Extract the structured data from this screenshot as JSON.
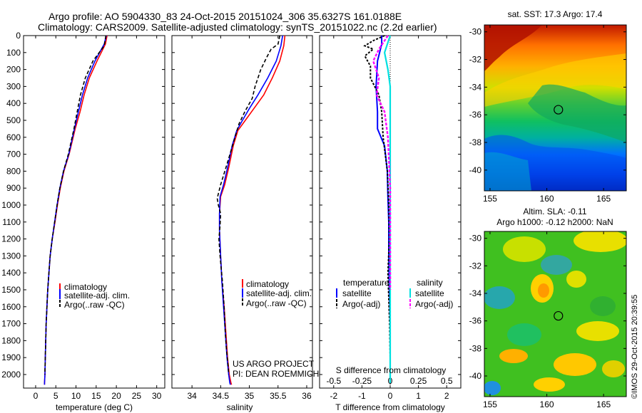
{
  "header": {
    "line1": "Argo profile: AO 5904330_83 24-Oct-2015 20151024_306 35.6327S 161.0188E",
    "line2": "Climatology: CARS2009. Satellite-adjusted climatology: synTS_20151022.nc (2.2d earlier)"
  },
  "colors": {
    "climatology": "#ff0000",
    "satellite": "#0000ff",
    "argo": "#000000",
    "salinity_satellite": "#00e0e0",
    "salinity_argo": "#ff00ff"
  },
  "credits": {
    "project": "US ARGO PROJECT",
    "pi": "PI: DEAN ROEMMICH",
    "imos": "©IMOS 29-Oct-2015 20:39:55"
  },
  "chart_data": [
    {
      "type": "line",
      "xlabel": "temperature (deg C)",
      "ylabel": "",
      "xlim": [
        -3,
        32
      ],
      "ylim": [
        2080,
        0
      ],
      "xticks": [
        0,
        5,
        10,
        15,
        20,
        25,
        30
      ],
      "yticks": [
        0,
        100,
        200,
        300,
        400,
        500,
        600,
        700,
        800,
        900,
        1000,
        1100,
        1200,
        1300,
        1400,
        1500,
        1600,
        1700,
        1800,
        1900,
        2000
      ],
      "legend": [
        "climatology",
        "satellite-adj. clim.",
        "Argo(..raw -QC)"
      ],
      "series": [
        {
          "name": "climatology",
          "x": [
            17.7,
            17.3,
            15.2,
            13.3,
            12.0,
            11.0,
            9.8,
            8.3,
            7.0,
            6.1,
            5.4,
            4.8,
            4.1,
            3.6,
            3.3,
            3.0,
            2.8,
            2.6,
            2.5,
            2.4,
            2.3,
            2.2,
            2.2
          ],
          "y": [
            0,
            50,
            150,
            250,
            350,
            450,
            550,
            700,
            800,
            900,
            1000,
            1100,
            1200,
            1300,
            1400,
            1500,
            1600,
            1700,
            1800,
            1900,
            2000,
            2050,
            2060
          ]
        },
        {
          "name": "satellite-adj. clim.",
          "x": [
            17.5,
            17.0,
            14.7,
            12.9,
            11.6,
            10.6,
            9.6,
            8.2,
            6.9,
            6.0,
            5.3,
            4.7,
            4.1,
            3.6,
            3.3,
            3.0,
            2.8,
            2.6,
            2.5,
            2.4,
            2.3,
            2.2,
            2.2
          ],
          "y": [
            0,
            50,
            150,
            250,
            350,
            450,
            550,
            700,
            800,
            900,
            1000,
            1100,
            1200,
            1300,
            1400,
            1500,
            1600,
            1700,
            1800,
            1900,
            2000,
            2050,
            2060
          ]
        },
        {
          "name": "Argo(..raw -QC)",
          "x": [
            17.4,
            17.0,
            14.2,
            12.3,
            11.1,
            10.3,
            9.5,
            8.1,
            6.9,
            6.0,
            5.3,
            4.7,
            4.1,
            3.6,
            3.3,
            3.0,
            2.8,
            2.6,
            2.5,
            2.4,
            2.3,
            2.3
          ],
          "y": [
            0,
            60,
            150,
            250,
            350,
            450,
            550,
            700,
            800,
            900,
            1000,
            1100,
            1200,
            1300,
            1400,
            1500,
            1600,
            1700,
            1800,
            1900,
            1980,
            2000
          ]
        }
      ]
    },
    {
      "type": "line",
      "xlabel": "salinity",
      "ylabel": "",
      "xlim": [
        33.65,
        36.1
      ],
      "ylim": [
        2080,
        0
      ],
      "xticks": [
        34,
        34.5,
        35,
        35.5,
        36
      ],
      "legend": [
        "climatology",
        "satellite-adj. clim.",
        "Argo(..raw -QC)"
      ],
      "series": [
        {
          "name": "climatology",
          "x": [
            35.62,
            35.6,
            35.53,
            35.4,
            35.25,
            35.08,
            34.93,
            34.8,
            34.72,
            34.64,
            34.57,
            34.5,
            34.48,
            34.48,
            34.5,
            34.52,
            34.56,
            34.58,
            34.6,
            34.62,
            34.65,
            34.68,
            34.69
          ],
          "y": [
            0,
            60,
            150,
            250,
            350,
            430,
            500,
            560,
            650,
            780,
            880,
            950,
            1050,
            1150,
            1300,
            1450,
            1600,
            1700,
            1800,
            1900,
            2000,
            2050,
            2060
          ]
        },
        {
          "name": "satellite-adj. clim.",
          "x": [
            35.58,
            35.55,
            35.47,
            35.32,
            35.15,
            35.0,
            34.88,
            34.78,
            34.7,
            34.62,
            34.55,
            34.49,
            34.48,
            34.48,
            34.5,
            34.52,
            34.55,
            34.57,
            34.59,
            34.61,
            34.64,
            34.66,
            34.67
          ],
          "y": [
            0,
            60,
            150,
            250,
            350,
            430,
            500,
            560,
            650,
            780,
            880,
            950,
            1050,
            1150,
            1300,
            1450,
            1600,
            1700,
            1800,
            1900,
            2000,
            2050,
            2060
          ]
        },
        {
          "name": "Argo(..raw -QC)",
          "x": [
            35.53,
            35.5,
            35.38,
            35.3,
            35.2,
            35.1,
            35.05,
            34.92,
            34.82,
            34.75,
            34.68,
            34.6,
            34.5,
            34.44,
            34.46,
            34.5,
            34.49,
            34.47,
            34.49,
            34.53,
            34.56,
            34.58,
            34.6,
            34.63,
            34.64
          ],
          "y": [
            0,
            50,
            80,
            130,
            200,
            300,
            370,
            450,
            520,
            600,
            680,
            770,
            880,
            960,
            1000,
            1050,
            1120,
            1200,
            1300,
            1450,
            1600,
            1750,
            1850,
            1950,
            2000
          ]
        }
      ]
    },
    {
      "type": "line",
      "xlabel": "T difference from climatology",
      "top_xlabel": "S difference from climatology",
      "xlim": [
        -2.5,
        2.5
      ],
      "ylim": [
        2080,
        0
      ],
      "xticks": [
        -2,
        -1,
        0,
        1,
        2
      ],
      "top_xticks": [
        -0.5,
        -0.25,
        0,
        0.25,
        0.5
      ],
      "legend_titles": [
        "temperature",
        "salinity"
      ],
      "legend": [
        "satellite",
        "Argo(-adj)",
        "satellite",
        "Argo(-adj)"
      ],
      "series": [
        {
          "name": "temperature satellite",
          "x": [
            -0.3,
            -0.3,
            -0.45,
            -0.5,
            -0.45,
            -0.45,
            -0.2,
            -0.1,
            -0.08,
            -0.05,
            -0.05,
            -0.03,
            0.0,
            0.0,
            0.0,
            0.0
          ],
          "y": [
            0,
            50,
            150,
            300,
            450,
            550,
            650,
            800,
            950,
            1100,
            1300,
            1500,
            1700,
            1900,
            2000,
            2050
          ]
        },
        {
          "name": "temperature Argo(-adj)",
          "x": [
            -0.2,
            -0.6,
            -0.9,
            -0.6,
            -0.9,
            -0.7,
            -0.7,
            -0.4,
            -0.3,
            -0.25,
            -0.1,
            -0.05,
            -0.03,
            -0.08,
            -0.02,
            0.0,
            0.0
          ],
          "y": [
            0,
            30,
            60,
            80,
            120,
            180,
            250,
            350,
            450,
            600,
            800,
            1000,
            1200,
            1400,
            1700,
            1900,
            2000
          ]
        },
        {
          "name": "salinity satellite",
          "x": [
            0.0,
            -0.05,
            -0.02,
            0.0,
            0.0,
            0.0,
            0.0,
            0.0,
            0.0
          ],
          "y": [
            0,
            100,
            200,
            300,
            500,
            800,
            1200,
            1600,
            2050
          ]
        },
        {
          "name": "salinity Argo(-adj)",
          "x": [
            -0.02,
            -0.1,
            -0.15,
            -0.1,
            -0.12,
            -0.05,
            -0.02,
            0.0,
            0.0,
            0.0
          ],
          "y": [
            0,
            80,
            150,
            250,
            350,
            450,
            600,
            900,
            1300,
            1500
          ]
        }
      ]
    },
    {
      "type": "heatmap",
      "title": "sat. SST: 17.3 Argo: 17.4",
      "xlim": [
        154.5,
        167
      ],
      "ylim": [
        -41.5,
        -29.5
      ],
      "xticks": [
        155,
        160,
        165
      ],
      "yticks": [
        -30,
        -32,
        -34,
        -36,
        -38,
        -40
      ],
      "marker": {
        "lon": 161.0188,
        "lat": -35.6327
      }
    },
    {
      "type": "heatmap",
      "title": "Altim. SLA: -0.11",
      "subtitle": "Argo h1000: -0.12 h2000: NaN",
      "xlim": [
        154.5,
        167
      ],
      "ylim": [
        -41.5,
        -29.5
      ],
      "xticks": [
        155,
        160,
        165
      ],
      "yticks": [
        -30,
        -32,
        -34,
        -36,
        -38,
        -40
      ],
      "marker": {
        "lon": 161.0188,
        "lat": -35.6327
      }
    }
  ]
}
